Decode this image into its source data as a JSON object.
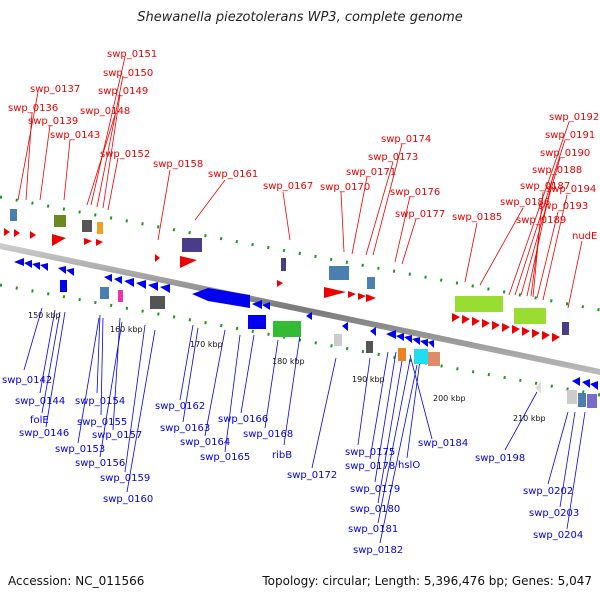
{
  "title": "Shewanella piezotolerans WP3, complete genome",
  "footer": {
    "accession": "Accession: NC_011566",
    "stats": "Topology: circular; Length: 5,396,476 bp; Genes: 5,047"
  },
  "colors": {
    "forward": "#ee0000",
    "reverse": "#0000ee",
    "backbone": "#888888",
    "tick": "#1a9a1a"
  },
  "scale_labels": [
    "150 kbp",
    "160 kbp",
    "170 kbp",
    "180 kbp",
    "190 kbp",
    "200 kbp",
    "210 kbp"
  ],
  "forward_labels": [
    "swp_0151",
    "swp_0150",
    "swp_0149",
    "swp_0137",
    "swp_0148",
    "swp_0136",
    "swp_0139",
    "swp_0143",
    "swp_0152",
    "swp_0158",
    "swp_0161",
    "swp_0167",
    "swp_0174",
    "swp_0173",
    "swp_0171",
    "swp_0170",
    "swp_0176",
    "swp_0177",
    "swp_0192",
    "swp_0191",
    "swp_0190",
    "swp_0188",
    "swp_0187",
    "swp_0186",
    "swp_0194",
    "swp_0193",
    "swp_0185",
    "swp_0189",
    "nudE"
  ],
  "reverse_labels": [
    "swp_0142",
    "swp_0144",
    "folE",
    "swp_0146",
    "swp_0154",
    "swp_0155",
    "swp_0153",
    "swp_0157",
    "swp_0156",
    "swp_0159",
    "swp_0160",
    "swp_0162",
    "swp_0163",
    "swp_0164",
    "swp_0165",
    "swp_0166",
    "swp_0168",
    "ribB",
    "swp_0172",
    "swp_0175",
    "swp_0178",
    "swp_0179",
    "swp_0180",
    "swp_0181",
    "swp_0182",
    "hslO",
    "swp_0184",
    "swp_0198",
    "swp_0202",
    "swp_0203",
    "swp_0204"
  ]
}
